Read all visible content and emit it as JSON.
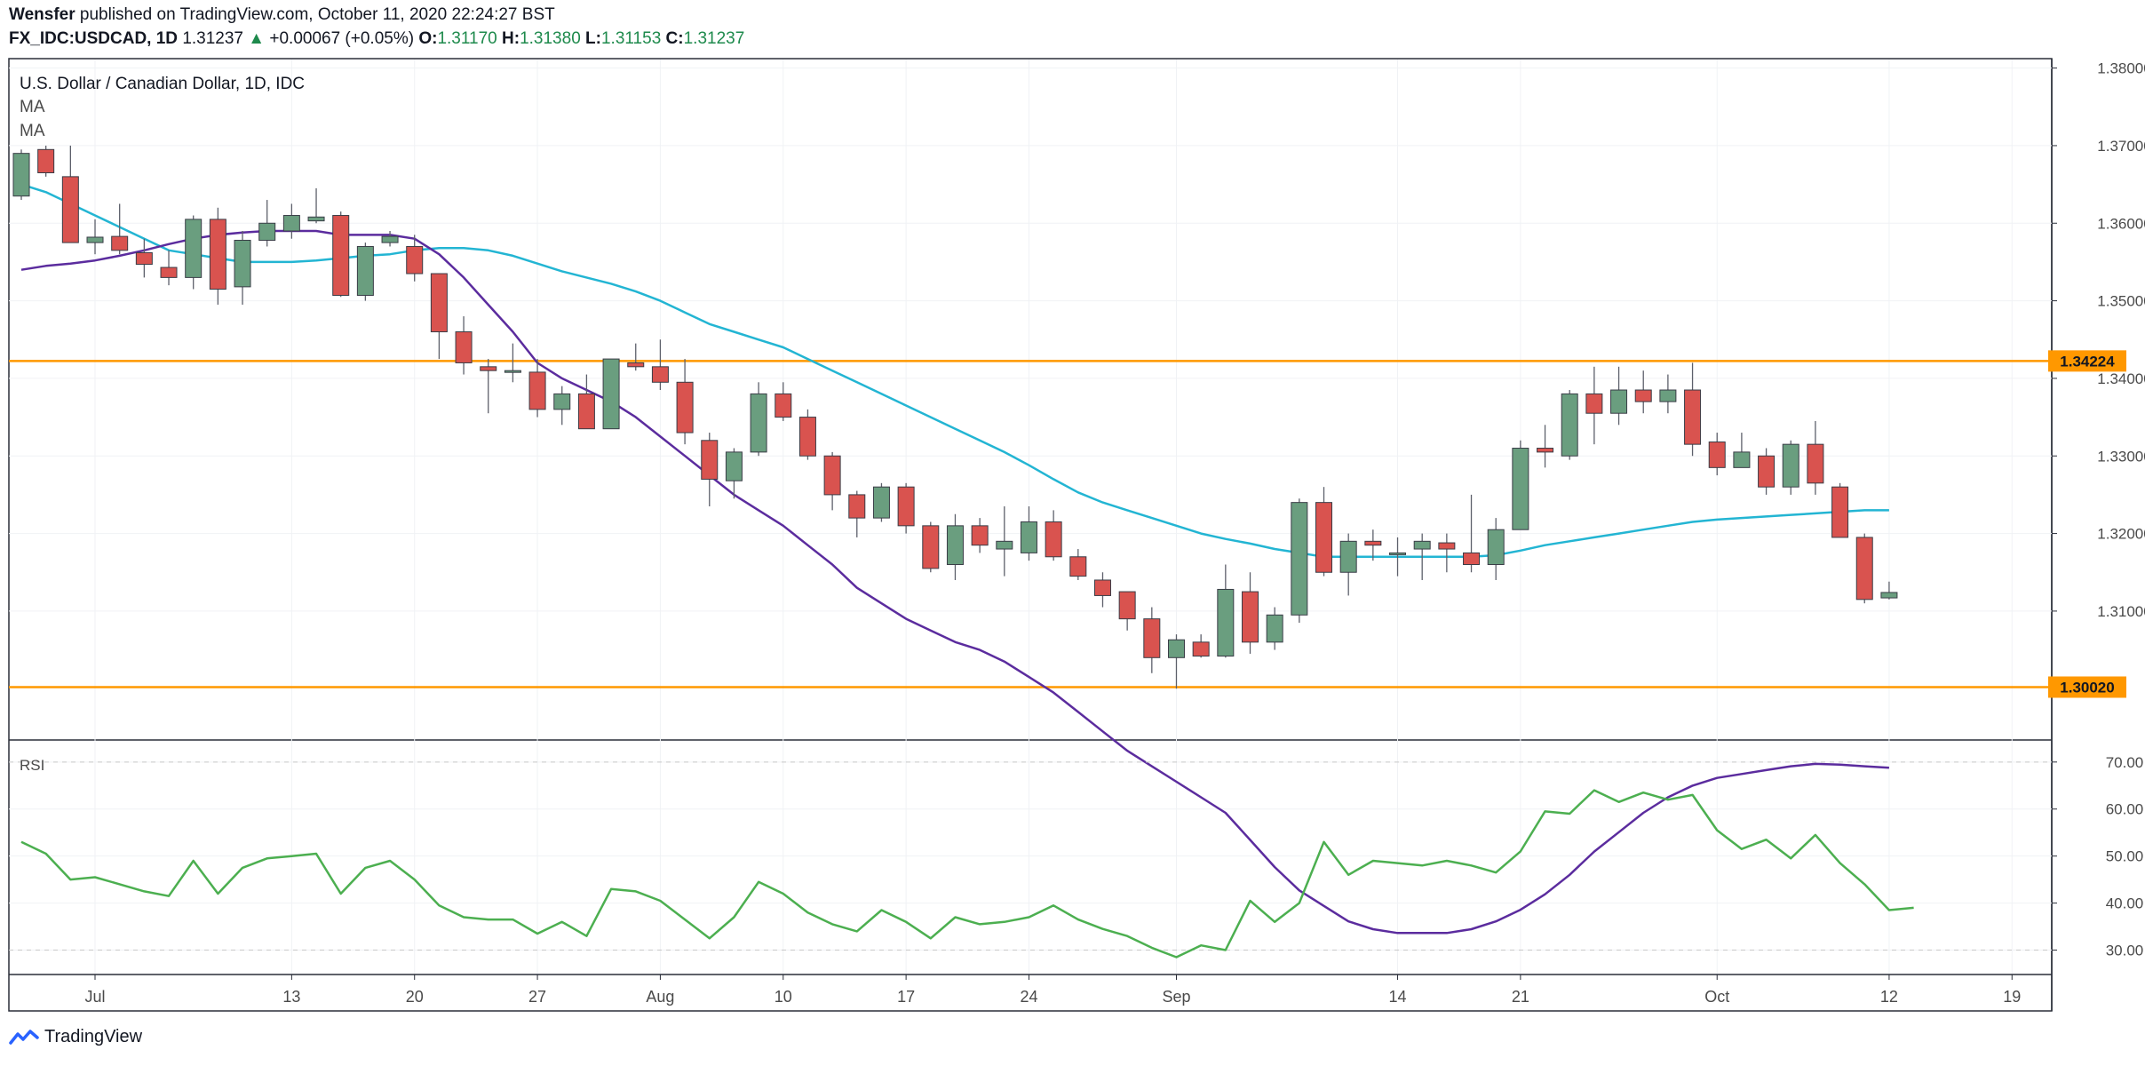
{
  "header": {
    "author": "Wensfer",
    "published_text": "published on TradingView.com, October 11, 2020 22:24:27 BST",
    "symbol": "FX_IDC:USDCAD, 1D",
    "last": "1.31237",
    "change_arrow": "▲",
    "change": "+0.00067 (+0.05%)",
    "o_label": "O:",
    "o": "1.31170",
    "h_label": "H:",
    "h": "1.31380",
    "l_label": "L:",
    "l": "1.31153",
    "c_label": "C:",
    "c": "1.31237"
  },
  "legend": {
    "instrument": "U.S. Dollar / Canadian Dollar, 1D, IDC",
    "ma1": "MA",
    "ma2": "MA",
    "rsi": "RSI"
  },
  "footer": {
    "brand": "TradingView"
  },
  "colors": {
    "up": "#6a9e7f",
    "down": "#d9534f",
    "ma_fast": "#5b2c9e",
    "ma_slow": "#23b5d3",
    "rsi": "#4caf50",
    "level": "#ff9800",
    "grid": "#f0f2f5",
    "axis_text": "#4a4a4a"
  },
  "chart_data": [
    {
      "type": "candlestick",
      "title": "U.S. Dollar / Canadian Dollar, 1D, IDC",
      "ylim": [
        1.2935,
        1.3811
      ],
      "y_ticks": [
        "1.38000",
        "1.37000",
        "1.36000",
        "1.35000",
        "1.34000",
        "1.33000",
        "1.32000",
        "1.31000"
      ],
      "x_ticks": [
        {
          "label": "Jul",
          "index": 3
        },
        {
          "label": "13",
          "index": 11
        },
        {
          "label": "20",
          "index": 16
        },
        {
          "label": "27",
          "index": 21
        },
        {
          "label": "Aug",
          "index": 26
        },
        {
          "label": "10",
          "index": 31
        },
        {
          "label": "17",
          "index": 36
        },
        {
          "label": "24",
          "index": 41
        },
        {
          "label": "Sep",
          "index": 47
        },
        {
          "label": "14",
          "index": 56
        },
        {
          "label": "21",
          "index": 61
        },
        {
          "label": "Oct",
          "index": 69
        },
        {
          "label": "12",
          "index": 76
        },
        {
          "label": "19",
          "index": 81
        }
      ],
      "levels": [
        {
          "value": 1.34224,
          "label": "1.34224"
        },
        {
          "value": 1.3002,
          "label": "1.30020"
        }
      ],
      "candles": [
        {
          "o": 1.3635,
          "h": 1.3695,
          "l": 1.363,
          "c": 1.369
        },
        {
          "o": 1.3695,
          "h": 1.37,
          "l": 1.366,
          "c": 1.3665
        },
        {
          "o": 1.366,
          "h": 1.37,
          "l": 1.3575,
          "c": 1.3575
        },
        {
          "o": 1.3575,
          "h": 1.3605,
          "l": 1.356,
          "c": 1.3582
        },
        {
          "o": 1.3583,
          "h": 1.3625,
          "l": 1.356,
          "c": 1.3565
        },
        {
          "o": 1.3562,
          "h": 1.358,
          "l": 1.353,
          "c": 1.3547
        },
        {
          "o": 1.3543,
          "h": 1.3565,
          "l": 1.352,
          "c": 1.353
        },
        {
          "o": 1.353,
          "h": 1.361,
          "l": 1.3515,
          "c": 1.3605
        },
        {
          "o": 1.3605,
          "h": 1.362,
          "l": 1.3495,
          "c": 1.3515
        },
        {
          "o": 1.3518,
          "h": 1.359,
          "l": 1.3495,
          "c": 1.3578
        },
        {
          "o": 1.3578,
          "h": 1.363,
          "l": 1.357,
          "c": 1.36
        },
        {
          "o": 1.359,
          "h": 1.3625,
          "l": 1.358,
          "c": 1.361
        },
        {
          "o": 1.3603,
          "h": 1.3645,
          "l": 1.36,
          "c": 1.3608
        },
        {
          "o": 1.361,
          "h": 1.3615,
          "l": 1.3505,
          "c": 1.3507
        },
        {
          "o": 1.3507,
          "h": 1.3575,
          "l": 1.35,
          "c": 1.357
        },
        {
          "o": 1.3575,
          "h": 1.359,
          "l": 1.357,
          "c": 1.3583
        },
        {
          "o": 1.357,
          "h": 1.3585,
          "l": 1.3525,
          "c": 1.3535
        },
        {
          "o": 1.3535,
          "h": 1.3535,
          "l": 1.3425,
          "c": 1.346
        },
        {
          "o": 1.346,
          "h": 1.348,
          "l": 1.3405,
          "c": 1.342
        },
        {
          "o": 1.3415,
          "h": 1.3425,
          "l": 1.3355,
          "c": 1.341
        },
        {
          "o": 1.341,
          "h": 1.3445,
          "l": 1.3395,
          "c": 1.341
        },
        {
          "o": 1.3408,
          "h": 1.3425,
          "l": 1.335,
          "c": 1.336
        },
        {
          "o": 1.336,
          "h": 1.339,
          "l": 1.334,
          "c": 1.338
        },
        {
          "o": 1.338,
          "h": 1.3405,
          "l": 1.3335,
          "c": 1.3335
        },
        {
          "o": 1.3335,
          "h": 1.3425,
          "l": 1.3335,
          "c": 1.3425
        },
        {
          "o": 1.342,
          "h": 1.3445,
          "l": 1.341,
          "c": 1.3415
        },
        {
          "o": 1.3415,
          "h": 1.345,
          "l": 1.3385,
          "c": 1.3395
        },
        {
          "o": 1.3395,
          "h": 1.3425,
          "l": 1.3315,
          "c": 1.333
        },
        {
          "o": 1.332,
          "h": 1.333,
          "l": 1.3235,
          "c": 1.327
        },
        {
          "o": 1.3268,
          "h": 1.331,
          "l": 1.3245,
          "c": 1.3305
        },
        {
          "o": 1.3305,
          "h": 1.3395,
          "l": 1.33,
          "c": 1.338
        },
        {
          "o": 1.338,
          "h": 1.3395,
          "l": 1.3345,
          "c": 1.335
        },
        {
          "o": 1.335,
          "h": 1.336,
          "l": 1.3295,
          "c": 1.33
        },
        {
          "o": 1.33,
          "h": 1.3305,
          "l": 1.323,
          "c": 1.325
        },
        {
          "o": 1.325,
          "h": 1.3255,
          "l": 1.3195,
          "c": 1.322
        },
        {
          "o": 1.322,
          "h": 1.3265,
          "l": 1.3215,
          "c": 1.326
        },
        {
          "o": 1.326,
          "h": 1.3265,
          "l": 1.32,
          "c": 1.321
        },
        {
          "o": 1.321,
          "h": 1.3215,
          "l": 1.315,
          "c": 1.3155
        },
        {
          "o": 1.316,
          "h": 1.3225,
          "l": 1.314,
          "c": 1.321
        },
        {
          "o": 1.321,
          "h": 1.322,
          "l": 1.3175,
          "c": 1.3185
        },
        {
          "o": 1.318,
          "h": 1.3235,
          "l": 1.3145,
          "c": 1.319
        },
        {
          "o": 1.3175,
          "h": 1.3235,
          "l": 1.3165,
          "c": 1.3215
        },
        {
          "o": 1.3215,
          "h": 1.323,
          "l": 1.3165,
          "c": 1.317
        },
        {
          "o": 1.317,
          "h": 1.318,
          "l": 1.314,
          "c": 1.3145
        },
        {
          "o": 1.314,
          "h": 1.315,
          "l": 1.3105,
          "c": 1.312
        },
        {
          "o": 1.3125,
          "h": 1.3125,
          "l": 1.3075,
          "c": 1.309
        },
        {
          "o": 1.309,
          "h": 1.3105,
          "l": 1.302,
          "c": 1.304
        },
        {
          "o": 1.304,
          "h": 1.307,
          "l": 1.3,
          "c": 1.3063
        },
        {
          "o": 1.306,
          "h": 1.307,
          "l": 1.304,
          "c": 1.3042
        },
        {
          "o": 1.3042,
          "h": 1.316,
          "l": 1.304,
          "c": 1.3128
        },
        {
          "o": 1.3125,
          "h": 1.315,
          "l": 1.3045,
          "c": 1.306
        },
        {
          "o": 1.306,
          "h": 1.3105,
          "l": 1.305,
          "c": 1.3095
        },
        {
          "o": 1.3095,
          "h": 1.3245,
          "l": 1.3085,
          "c": 1.324
        },
        {
          "o": 1.324,
          "h": 1.326,
          "l": 1.3145,
          "c": 1.315
        },
        {
          "o": 1.315,
          "h": 1.32,
          "l": 1.312,
          "c": 1.319
        },
        {
          "o": 1.319,
          "h": 1.3205,
          "l": 1.3165,
          "c": 1.3185
        },
        {
          "o": 1.3175,
          "h": 1.3195,
          "l": 1.3145,
          "c": 1.3175
        },
        {
          "o": 1.318,
          "h": 1.32,
          "l": 1.314,
          "c": 1.319
        },
        {
          "o": 1.3188,
          "h": 1.32,
          "l": 1.315,
          "c": 1.318
        },
        {
          "o": 1.3175,
          "h": 1.325,
          "l": 1.315,
          "c": 1.316
        },
        {
          "o": 1.316,
          "h": 1.322,
          "l": 1.314,
          "c": 1.3205
        },
        {
          "o": 1.3205,
          "h": 1.332,
          "l": 1.3205,
          "c": 1.331
        },
        {
          "o": 1.331,
          "h": 1.334,
          "l": 1.3285,
          "c": 1.3305
        },
        {
          "o": 1.33,
          "h": 1.3385,
          "l": 1.3295,
          "c": 1.338
        },
        {
          "o": 1.338,
          "h": 1.3415,
          "l": 1.3315,
          "c": 1.3355
        },
        {
          "o": 1.3355,
          "h": 1.3415,
          "l": 1.334,
          "c": 1.3385
        },
        {
          "o": 1.3385,
          "h": 1.341,
          "l": 1.3355,
          "c": 1.337
        },
        {
          "o": 1.337,
          "h": 1.3405,
          "l": 1.3355,
          "c": 1.3385
        },
        {
          "o": 1.3385,
          "h": 1.342,
          "l": 1.33,
          "c": 1.3315
        },
        {
          "o": 1.3318,
          "h": 1.333,
          "l": 1.3275,
          "c": 1.3285
        },
        {
          "o": 1.3285,
          "h": 1.333,
          "l": 1.3285,
          "c": 1.3305
        },
        {
          "o": 1.33,
          "h": 1.331,
          "l": 1.325,
          "c": 1.326
        },
        {
          "o": 1.326,
          "h": 1.332,
          "l": 1.325,
          "c": 1.3315
        },
        {
          "o": 1.3315,
          "h": 1.3345,
          "l": 1.325,
          "c": 1.3265
        },
        {
          "o": 1.326,
          "h": 1.3265,
          "l": 1.3195,
          "c": 1.3195
        },
        {
          "o": 1.3195,
          "h": 1.32,
          "l": 1.311,
          "c": 1.3115
        },
        {
          "o": 1.3117,
          "h": 1.3138,
          "l": 1.3115,
          "c": 1.3124
        }
      ],
      "ma_fast": [
        1.354,
        1.3545,
        1.3548,
        1.3552,
        1.3558,
        1.3565,
        1.3573,
        1.358,
        1.3585,
        1.3588,
        1.359,
        1.359,
        1.359,
        1.3585,
        1.3585,
        1.3585,
        1.358,
        1.356,
        1.353,
        1.3495,
        1.346,
        1.342,
        1.34,
        1.3385,
        1.337,
        1.335,
        1.3325,
        1.33,
        1.3275,
        1.325,
        1.323,
        1.321,
        1.3185,
        1.316,
        1.313,
        1.311,
        1.309,
        1.3075,
        1.306,
        1.305,
        1.3035,
        1.3015,
        1.2995,
        1.297,
        1.2945,
        1.292,
        1.29,
        1.288,
        1.286,
        1.284,
        1.2805,
        1.277,
        1.274,
        1.272,
        1.27,
        1.269,
        1.2685,
        1.2685,
        1.2685,
        1.269,
        1.27,
        1.2715,
        1.2735,
        1.276,
        1.279,
        1.2815,
        1.284,
        1.286,
        1.2875,
        1.2885,
        1.289,
        1.2895,
        1.29,
        1.2903,
        1.2902,
        1.29,
        1.2898
      ],
      "ma_slow": [
        1.365,
        1.364,
        1.3625,
        1.361,
        1.3595,
        1.358,
        1.3565,
        1.356,
        1.3555,
        1.355,
        1.355,
        1.355,
        1.3552,
        1.3555,
        1.3558,
        1.356,
        1.3565,
        1.3568,
        1.3568,
        1.3565,
        1.3558,
        1.3548,
        1.3538,
        1.353,
        1.3522,
        1.3512,
        1.35,
        1.3485,
        1.347,
        1.346,
        1.345,
        1.344,
        1.3425,
        1.341,
        1.3395,
        1.338,
        1.3365,
        1.335,
        1.3335,
        1.332,
        1.3305,
        1.3288,
        1.327,
        1.3253,
        1.324,
        1.323,
        1.322,
        1.321,
        1.32,
        1.3193,
        1.3187,
        1.318,
        1.3175,
        1.317,
        1.317,
        1.317,
        1.317,
        1.317,
        1.317,
        1.317,
        1.3172,
        1.3178,
        1.3185,
        1.319,
        1.3195,
        1.32,
        1.3205,
        1.321,
        1.3215,
        1.3218,
        1.322,
        1.3222,
        1.3224,
        1.3226,
        1.3228,
        1.323,
        1.323
      ]
    },
    {
      "type": "line",
      "title": "RSI",
      "ylim": [
        25,
        74.5
      ],
      "y_ticks": [
        "70.00",
        "60.00",
        "50.00",
        "40.00",
        "30.00"
      ],
      "guide_lines": [
        70,
        30
      ],
      "values": [
        53,
        50.5,
        45,
        45.5,
        44,
        42.5,
        41.5,
        49,
        42,
        47.5,
        49.5,
        50,
        50.5,
        42,
        47.5,
        49,
        45,
        39.5,
        37,
        36.5,
        36.5,
        33.5,
        36,
        33,
        43,
        42.5,
        40.5,
        36.5,
        32.5,
        37,
        44.5,
        42,
        38,
        35.5,
        34,
        38.5,
        36,
        32.5,
        37,
        35.5,
        36,
        37,
        39.5,
        36.5,
        34.5,
        33,
        30.5,
        28.5,
        31,
        30,
        40.5,
        36,
        40,
        53,
        46,
        49,
        48.5,
        48,
        49,
        48,
        46.5,
        51,
        59.5,
        59,
        64,
        61.5,
        63.5,
        62,
        63,
        55.5,
        51.5,
        53.5,
        49.5,
        54.5,
        48.5,
        44,
        38.5,
        39
      ]
    }
  ]
}
